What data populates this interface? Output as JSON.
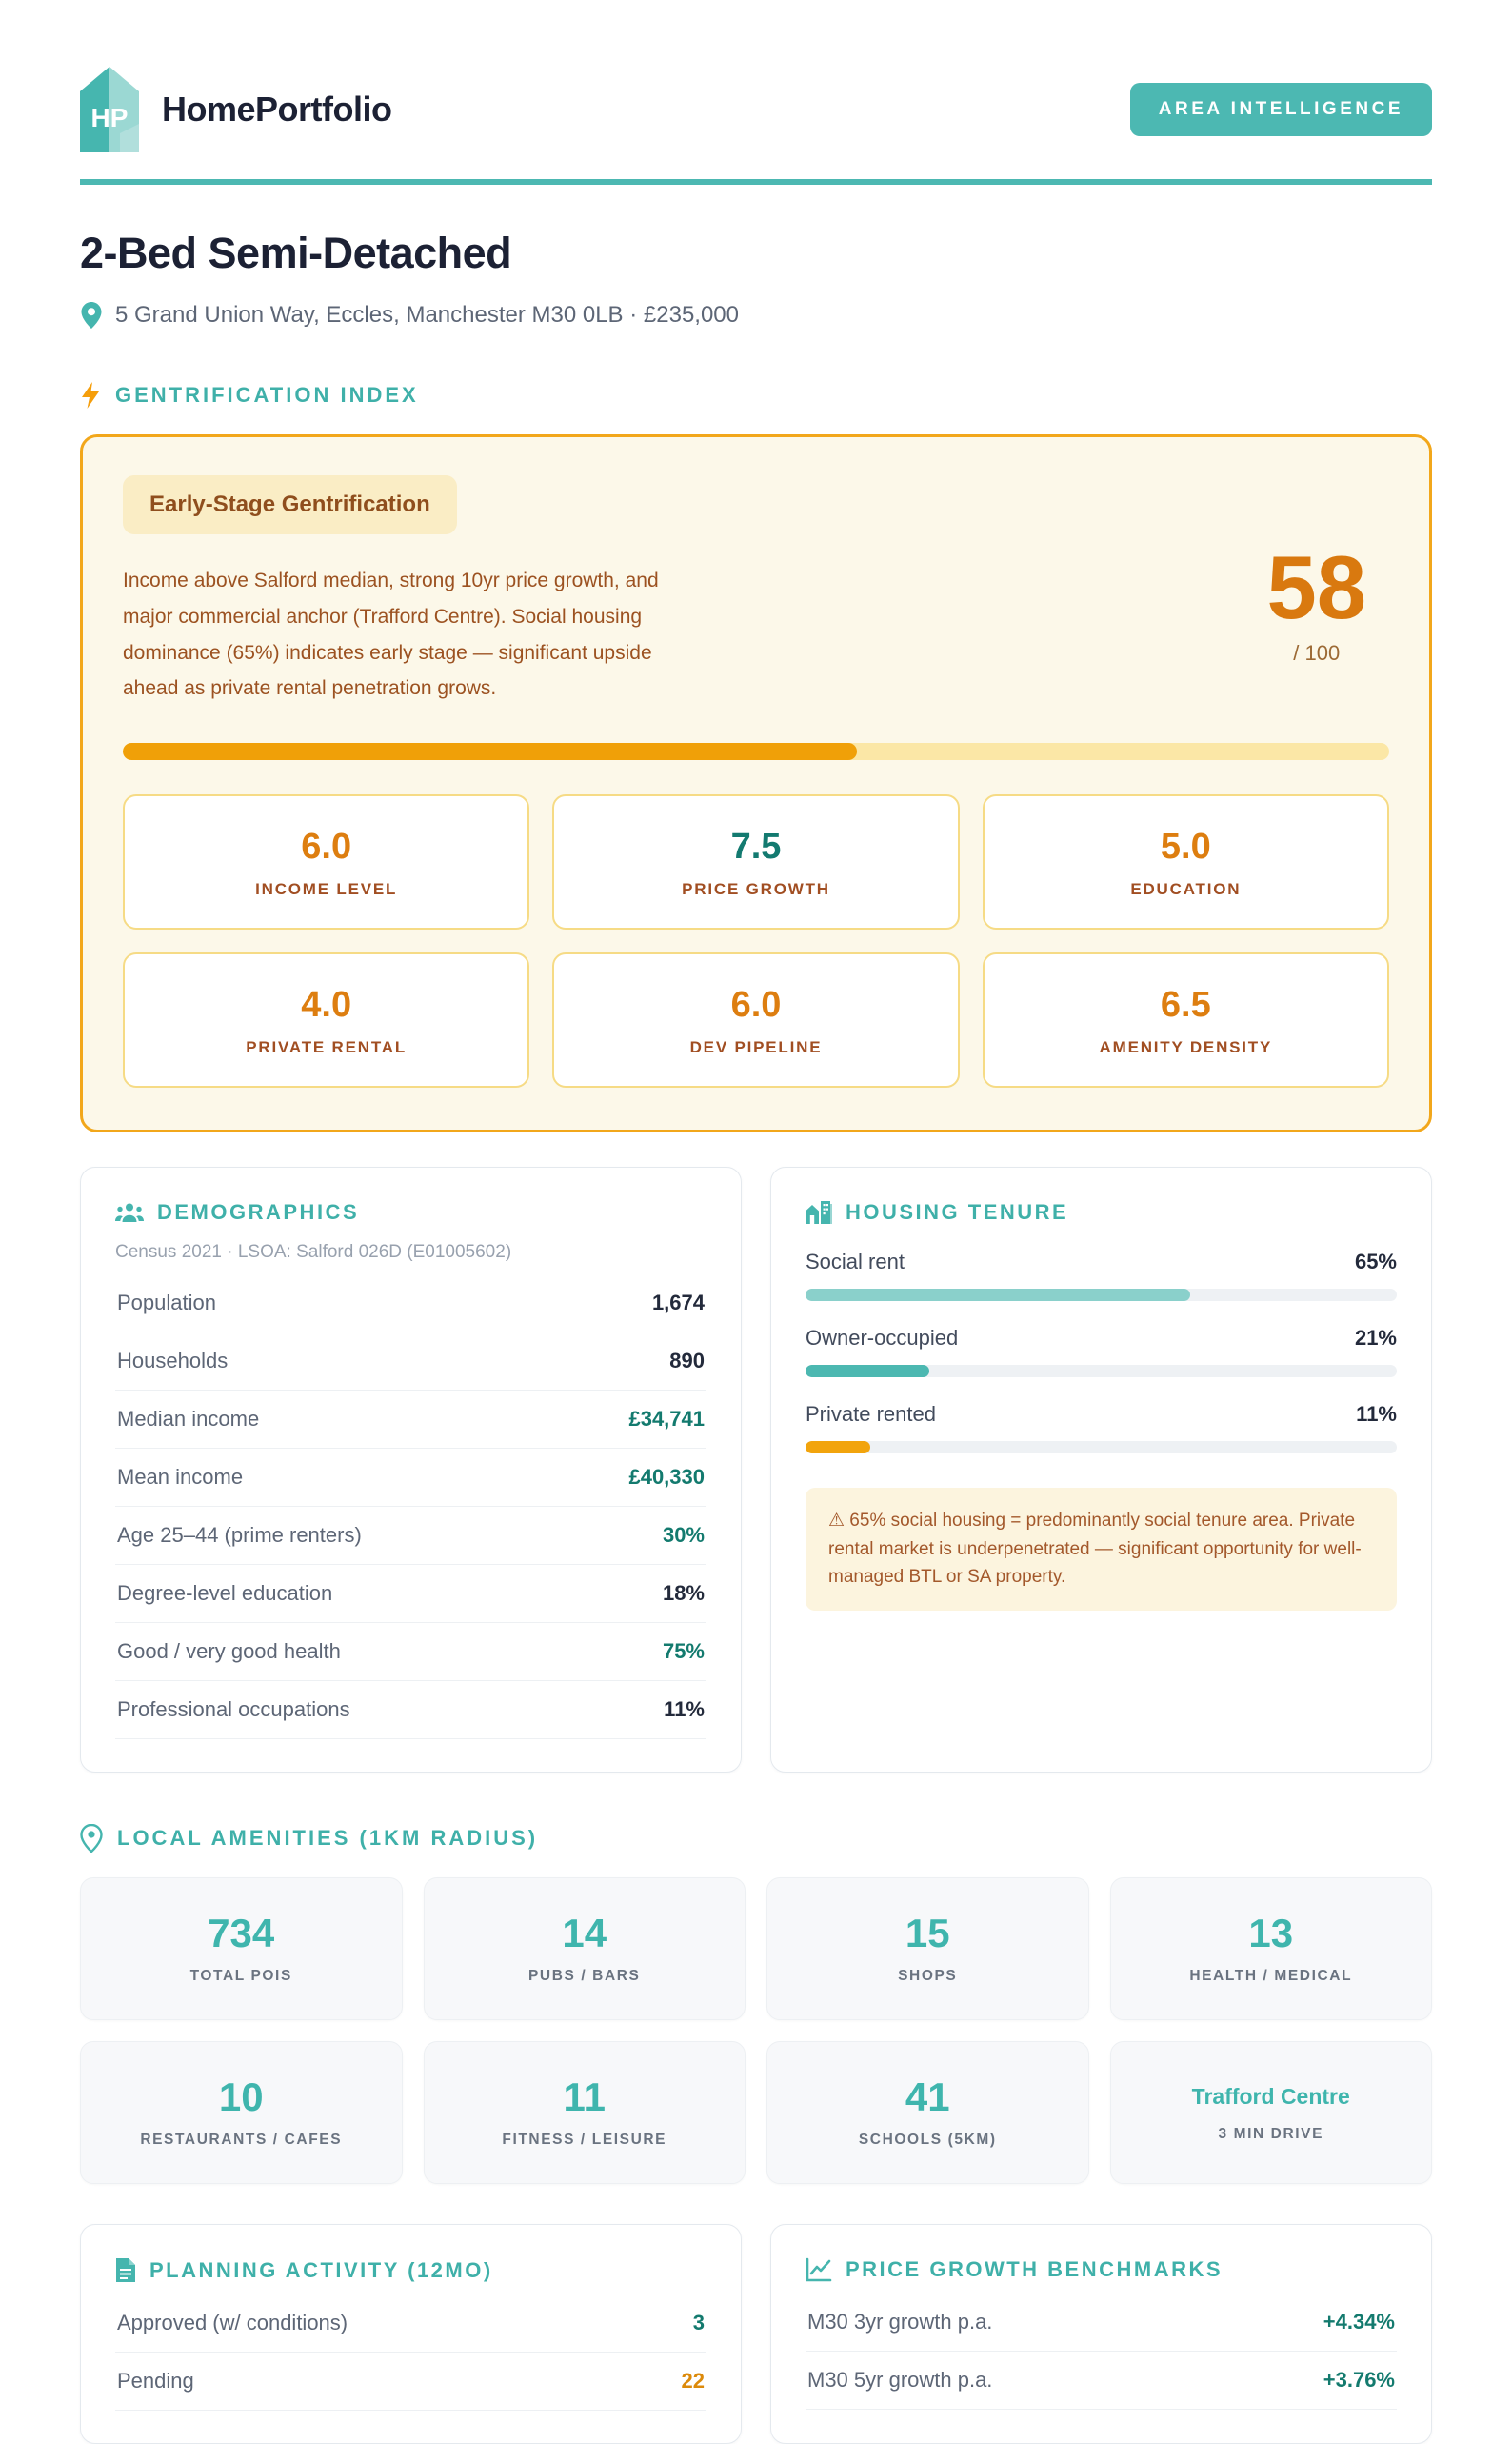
{
  "brand": {
    "logo_monogram": "HP",
    "name": "HomePortfolio",
    "badge": "AREA INTELLIGENCE"
  },
  "property": {
    "title": "2-Bed Semi-Detached",
    "address": "5 Grand Union Way, Eccles, Manchester M30 0LB · £235,000"
  },
  "gentrification": {
    "section_title": "GENTRIFICATION INDEX",
    "stage_badge": "Early-Stage Gentrification",
    "description": "Income above Salford median, strong 10yr price growth, and major commercial anchor (Trafford Centre). Social housing dominance (65%) indicates early stage — significant upside ahead as private rental penetration grows.",
    "score": "58",
    "score_suffix": "/ 100",
    "score_pct": 58,
    "subscores": [
      {
        "value": "6.0",
        "label": "INCOME LEVEL",
        "color": "orange"
      },
      {
        "value": "7.5",
        "label": "PRICE GROWTH",
        "color": "teal"
      },
      {
        "value": "5.0",
        "label": "EDUCATION",
        "color": "orange"
      },
      {
        "value": "4.0",
        "label": "PRIVATE RENTAL",
        "color": "orange"
      },
      {
        "value": "6.0",
        "label": "DEV PIPELINE",
        "color": "orange"
      },
      {
        "value": "6.5",
        "label": "AMENITY DENSITY",
        "color": "orange"
      }
    ]
  },
  "demographics": {
    "title": "DEMOGRAPHICS",
    "source": "Census 2021 · LSOA: Salford 026D (E01005602)",
    "rows": [
      {
        "label": "Population",
        "value": "1,674",
        "color": "dark"
      },
      {
        "label": "Households",
        "value": "890",
        "color": "dark"
      },
      {
        "label": "Median income",
        "value": "£34,741",
        "color": "teal"
      },
      {
        "label": "Mean income",
        "value": "£40,330",
        "color": "teal"
      },
      {
        "label": "Age 25–44 (prime renters)",
        "value": "30%",
        "color": "teal"
      },
      {
        "label": "Degree-level education",
        "value": "18%",
        "color": "dark"
      },
      {
        "label": "Good / very good health",
        "value": "75%",
        "color": "teal"
      },
      {
        "label": "Professional occupations",
        "value": "11%",
        "color": "dark"
      }
    ]
  },
  "housing_tenure": {
    "title": "HOUSING TENURE",
    "bars": [
      {
        "label": "Social rent",
        "value": "65%",
        "pct": 65,
        "color": "#8AD0CB"
      },
      {
        "label": "Owner-occupied",
        "value": "21%",
        "pct": 21,
        "color": "#4CB8B1"
      },
      {
        "label": "Private rented",
        "value": "11%",
        "pct": 11,
        "color": "#F2A40D"
      }
    ],
    "note": "⚠ 65% social housing = predominantly social tenure area. Private rental market is underpenetrated — significant opportunity for well-managed BTL or SA property."
  },
  "amenities": {
    "section_title": "LOCAL AMENITIES (1KM RADIUS)",
    "cards": [
      {
        "value": "734",
        "label": "TOTAL POIS",
        "text_value": false
      },
      {
        "value": "14",
        "label": "PUBS / BARS",
        "text_value": false
      },
      {
        "value": "15",
        "label": "SHOPS",
        "text_value": false
      },
      {
        "value": "13",
        "label": "HEALTH / MEDICAL",
        "text_value": false
      },
      {
        "value": "10",
        "label": "RESTAURANTS / CAFES",
        "text_value": false
      },
      {
        "value": "11",
        "label": "FITNESS / LEISURE",
        "text_value": false
      },
      {
        "value": "41",
        "label": "SCHOOLS (5KM)",
        "text_value": false
      },
      {
        "value": "Trafford Centre",
        "label": "3 MIN DRIVE",
        "text_value": true
      }
    ]
  },
  "planning": {
    "title": "PLANNING ACTIVITY (12MO)",
    "rows": [
      {
        "label": "Approved (w/ conditions)",
        "value": "3",
        "color": "teal"
      },
      {
        "label": "Pending",
        "value": "22",
        "color": "orange"
      }
    ]
  },
  "price_growth": {
    "title": "PRICE GROWTH BENCHMARKS",
    "rows": [
      {
        "label": "M30 3yr growth p.a.",
        "value": "+4.34%",
        "color": "teal"
      },
      {
        "label": "M30 5yr growth p.a.",
        "value": "+3.76%",
        "color": "teal"
      }
    ]
  },
  "colors": {
    "teal_accent": "#4CB8B2",
    "teal_dark": "#137A6E",
    "orange": "#F0A008",
    "orange_dark": "#D9790F",
    "brown": "#A14E22",
    "navy": "#1C2134",
    "cream": "#FCF8E9"
  }
}
